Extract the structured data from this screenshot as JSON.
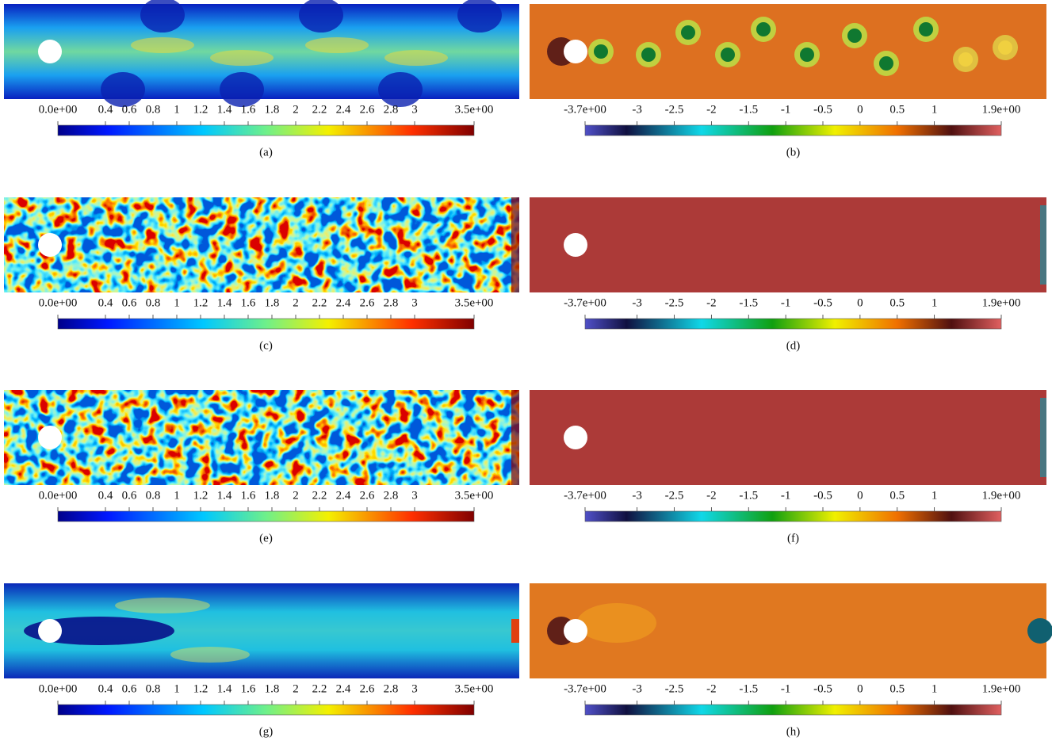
{
  "panels": [
    {
      "caption": "(a)",
      "ticks": [
        {
          "value": 0,
          "label": "0.0e+00"
        },
        0.4,
        0.6,
        0.8,
        1,
        1.2,
        1.4,
        1.6,
        1.8,
        2,
        2.2,
        2.4,
        2.6,
        2.8,
        3,
        {
          "value": 3.5,
          "label": "3.5e+00"
        }
      ]
    },
    {
      "caption": "(b)",
      "ticks": [
        {
          "value": -3.7,
          "label": "-3.7e+00"
        },
        -3,
        -2.5,
        -2,
        -1.5,
        -1,
        -0.5,
        0,
        0.5,
        1,
        {
          "value": 1.9,
          "label": "1.9e+00"
        }
      ]
    },
    {
      "caption": "(c)",
      "ticks": [
        {
          "value": 0,
          "label": "0.0e+00"
        },
        0.4,
        0.6,
        0.8,
        1,
        1.2,
        1.4,
        1.6,
        1.8,
        2,
        2.2,
        2.4,
        2.6,
        2.8,
        3,
        {
          "value": 3.5,
          "label": "3.5e+00"
        }
      ]
    },
    {
      "caption": "(d)",
      "ticks": [
        {
          "value": -3.7,
          "label": "-3.7e+00"
        },
        -3,
        -2.5,
        -2,
        -1.5,
        -1,
        -0.5,
        0,
        0.5,
        1,
        {
          "value": 1.9,
          "label": "1.9e+00"
        }
      ]
    },
    {
      "caption": "(e)",
      "ticks": [
        {
          "value": 0,
          "label": "0.0e+00"
        },
        0.4,
        0.6,
        0.8,
        1,
        1.2,
        1.4,
        1.6,
        1.8,
        2,
        2.2,
        2.4,
        2.6,
        2.8,
        3,
        {
          "value": 3.5,
          "label": "3.5e+00"
        }
      ]
    },
    {
      "caption": "(f)",
      "ticks": [
        {
          "value": -3.7,
          "label": "-3.7e+00"
        },
        -3,
        -2.5,
        -2,
        -1.5,
        -1,
        -0.5,
        0,
        0.5,
        1,
        {
          "value": 1.9,
          "label": "1.9e+00"
        }
      ]
    },
    {
      "caption": "(g)",
      "ticks": [
        {
          "value": 0,
          "label": "0.0e+00"
        },
        0.4,
        0.6,
        0.8,
        1,
        1.2,
        1.4,
        1.6,
        1.8,
        2,
        2.2,
        2.4,
        2.6,
        2.8,
        3,
        {
          "value": 3.5,
          "label": "3.5e+00"
        }
      ]
    },
    {
      "caption": "(h)",
      "ticks": [
        {
          "value": -3.7,
          "label": "-3.7e+00"
        },
        -3,
        -2.5,
        -2,
        -1.5,
        -1,
        -0.5,
        0,
        0.5,
        1,
        {
          "value": 1.9,
          "label": "1.9e+00"
        }
      ]
    }
  ]
}
